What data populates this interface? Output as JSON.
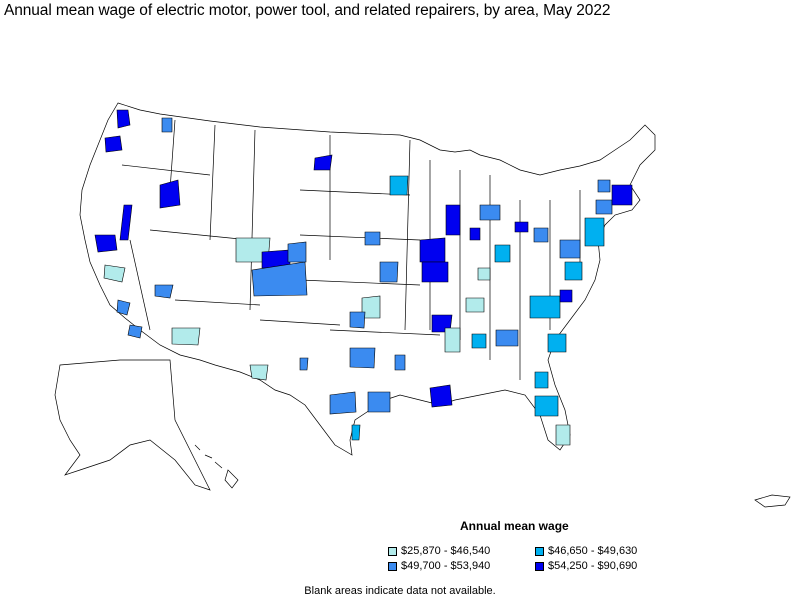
{
  "title": "Annual mean wage of electric motor, power tool, and related repairers, by area, May 2022",
  "legend": {
    "title": "Annual mean wage",
    "items": [
      {
        "label": "$25,870 - $46,540",
        "color": "#b2ebeb"
      },
      {
        "label": "$46,650 - $49,630",
        "color": "#00b0f0"
      },
      {
        "label": "$49,700 - $53,940",
        "color": "#3b8bf0"
      },
      {
        "label": "$54,250 - $90,690",
        "color": "#0000f0"
      }
    ]
  },
  "note": "Blank areas indicate data not available.",
  "colors": {
    "outline": "#000000",
    "background": "#ffffff"
  }
}
